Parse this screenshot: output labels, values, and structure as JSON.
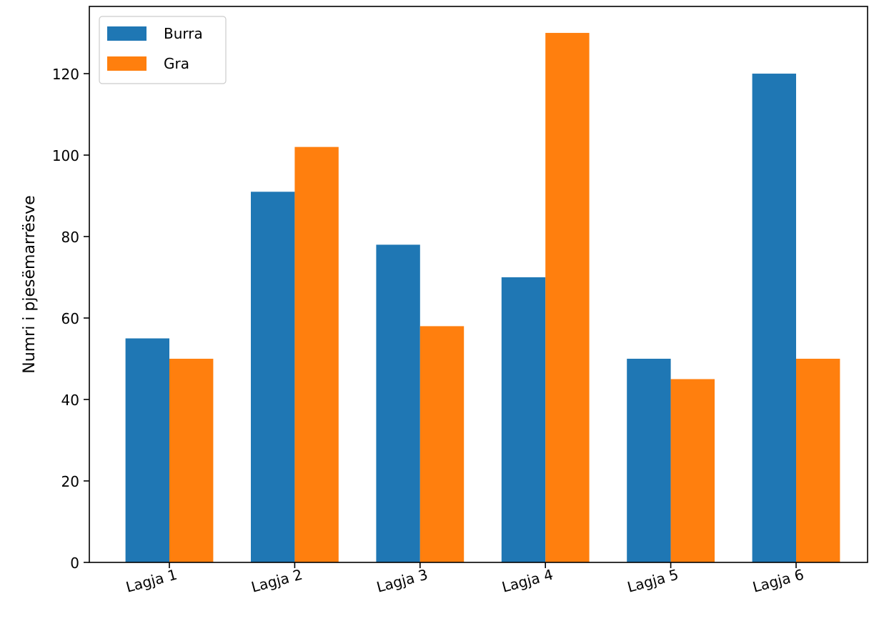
{
  "chart_data": {
    "type": "bar",
    "title": "",
    "xlabel": "",
    "ylabel": "Numri i pjesëmarrësve",
    "categories": [
      "Lagja 1",
      "Lagja 2",
      "Lagja 3",
      "Lagja 4",
      "Lagja 5",
      "Lagja 6"
    ],
    "series": [
      {
        "name": "Burra",
        "color": "#1f77b4",
        "values": [
          55,
          91,
          78,
          70,
          50,
          120
        ]
      },
      {
        "name": "Gra",
        "color": "#ff7f0e",
        "values": [
          50,
          102,
          58,
          130,
          45,
          50
        ]
      }
    ],
    "ylim": [
      0,
      136.5
    ],
    "yticks": [
      "0",
      "20",
      "40",
      "60",
      "80",
      "100",
      "120"
    ],
    "grid": false,
    "legend_position": "top-left"
  }
}
